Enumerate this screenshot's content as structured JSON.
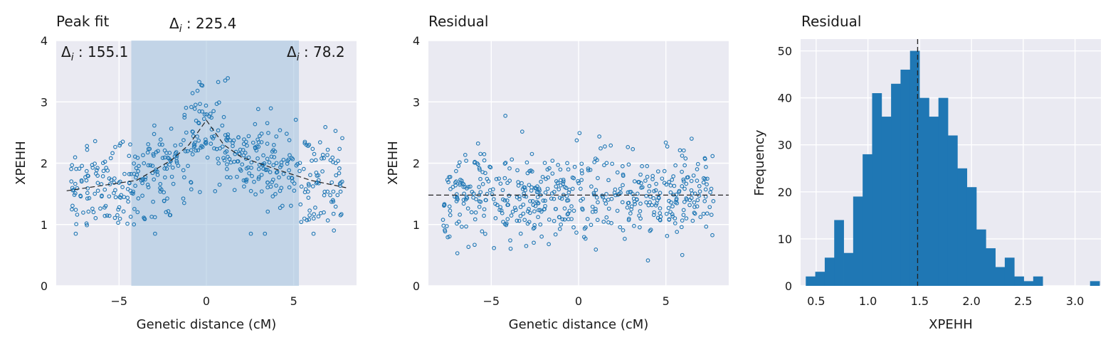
{
  "chart_data": [
    {
      "type": "scatter",
      "title": "Peak fit",
      "xlabel": "Genetic distance (cM)",
      "ylabel": "XPEHH",
      "xlim": [
        -8.6,
        8.6
      ],
      "ylim": [
        0,
        4
      ],
      "xticks": [
        -5,
        0,
        5
      ],
      "yticks": [
        0,
        1,
        2,
        3,
        4
      ],
      "grid": true,
      "annotations": [
        {
          "label_main": "Δ",
          "label_sub": "i",
          "label_rest": " : 225.4",
          "placement": "top-center"
        },
        {
          "label_main": "Δ",
          "label_sub": "i",
          "label_rest": " : 155.1",
          "placement": "top-left"
        },
        {
          "label_main": "Δ",
          "label_sub": "i",
          "label_rest": " : 78.2",
          "placement": "top-right"
        }
      ],
      "shaded_region": {
        "x0": -4.3,
        "x1": 5.3,
        "color": "#a9c7e0"
      },
      "fit_line": {
        "x": [
          -8,
          -4,
          -2,
          -1,
          0,
          1,
          2,
          4,
          6,
          8
        ],
        "y": [
          1.55,
          1.72,
          2.05,
          2.3,
          2.7,
          2.3,
          2.1,
          1.9,
          1.72,
          1.6
        ],
        "style": "dashed",
        "color": "#222222"
      },
      "series": [
        {
          "color": "#1f77b4",
          "n_points": 520,
          "x_range": [
            -7.8,
            7.8
          ]
        }
      ]
    },
    {
      "type": "scatter",
      "title": "Residual",
      "xlabel": "Genetic distance (cM)",
      "ylabel": "XPEHH",
      "xlim": [
        -8.6,
        8.6
      ],
      "ylim": [
        0,
        4
      ],
      "xticks": [
        -5,
        0,
        5
      ],
      "yticks": [
        0,
        1,
        2,
        3,
        4
      ],
      "grid": true,
      "hline": {
        "y": 1.48,
        "style": "dashed",
        "color": "#222222"
      },
      "series": [
        {
          "color": "#1f77b4",
          "n_points": 520,
          "x_range": [
            -7.8,
            7.8
          ]
        }
      ]
    },
    {
      "type": "bar",
      "subtype": "histogram",
      "title": "Residual",
      "xlabel": "XPEHH",
      "ylabel": "Frequency",
      "xlim": [
        0.35,
        3.25
      ],
      "ylim": [
        0,
        52.5
      ],
      "xticks": [
        0.5,
        1.0,
        1.5,
        2.0,
        2.5,
        3.0
      ],
      "xtick_labels": [
        "0.5",
        "1.0",
        "1.5",
        "2.0",
        "2.5",
        "3.0"
      ],
      "yticks": [
        0,
        10,
        20,
        30,
        40,
        50
      ],
      "grid": true,
      "bin_edges": [
        0.4,
        0.4915,
        0.583,
        0.6745,
        0.766,
        0.8575,
        0.949,
        1.0405,
        1.132,
        1.2235,
        1.315,
        1.4065,
        1.498,
        1.5895,
        1.681,
        1.7725,
        1.864,
        1.9555,
        2.047,
        2.1385,
        2.23,
        2.3215,
        2.413,
        2.5045,
        2.596,
        2.6875,
        2.779,
        2.8705,
        2.962,
        3.0535,
        3.145,
        3.2365
      ],
      "counts": [
        2,
        3,
        6,
        14,
        7,
        19,
        28,
        41,
        36,
        43,
        46,
        50,
        40,
        36,
        40,
        32,
        25,
        21,
        12,
        8,
        4,
        6,
        2,
        1,
        2,
        0,
        0,
        0,
        0,
        0,
        1
      ],
      "vline": {
        "x": 1.48,
        "style": "dashed",
        "color": "#222222"
      },
      "color": "#1f77b4"
    }
  ]
}
